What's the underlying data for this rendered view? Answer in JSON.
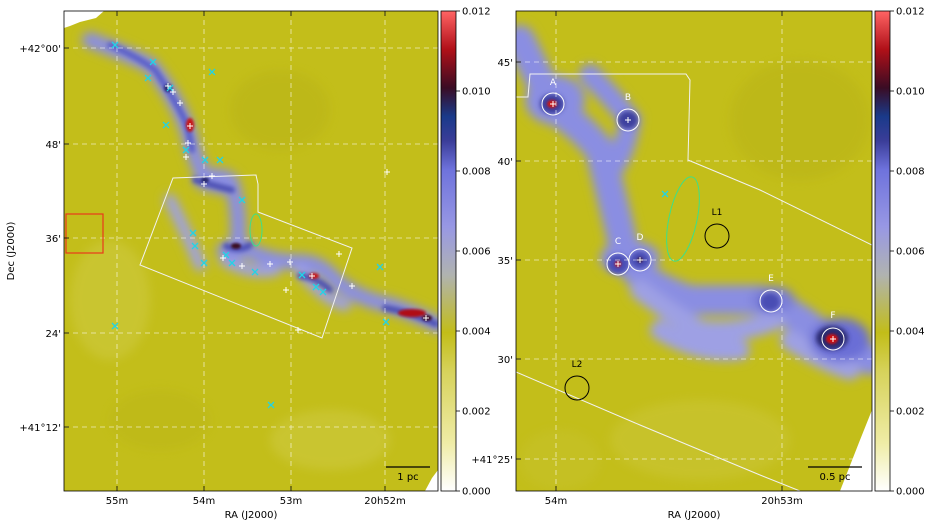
{
  "colors": {
    "background_map": "#c3be1a",
    "filament": "#7a7fe0",
    "filament_deep": "#3c3f9e",
    "peak_red": "#d01010",
    "marker_cyan": "#22d3e6",
    "marker_white": "#ffffff",
    "footprint_line": "#f2f2f2",
    "scale_line": "#000000",
    "red_box": "#e83a1a",
    "green_ellipse": "#3ce089",
    "black_circle": "#000000"
  },
  "chart_data": [
    {
      "type": "heatmap",
      "panel": "left",
      "xlabel": "RA (J2000)",
      "ylabel": "Dec (J2000)",
      "x_ticks": [
        "55m",
        "54m",
        "53m",
        "20h52m"
      ],
      "y_ticks": [
        "+42°00'",
        "48'",
        "36'",
        "24'",
        "+41°12'"
      ],
      "grid": true,
      "scale_bar": "1 pc",
      "colorbar": {
        "min": 0.0,
        "max": 0.012,
        "ticks": [
          "0.000",
          "0.002",
          "0.004",
          "0.006",
          "0.008",
          "0.010",
          "0.012"
        ]
      }
    },
    {
      "type": "heatmap",
      "panel": "right",
      "xlabel": "RA (J2000)",
      "x_ticks": [
        "54m",
        "20h53m"
      ],
      "y_ticks": [
        "45'",
        "40'",
        "35'",
        "30'",
        "+41°25'"
      ],
      "grid": true,
      "scale_bar": "0.5 pc",
      "sources": [
        "A",
        "B",
        "C",
        "D",
        "E",
        "F",
        "L1",
        "L2"
      ],
      "colorbar": {
        "min": 0.0,
        "max": 0.012,
        "ticks": [
          "0.000",
          "0.002",
          "0.004",
          "0.006",
          "0.008",
          "0.010",
          "0.012"
        ]
      }
    }
  ]
}
